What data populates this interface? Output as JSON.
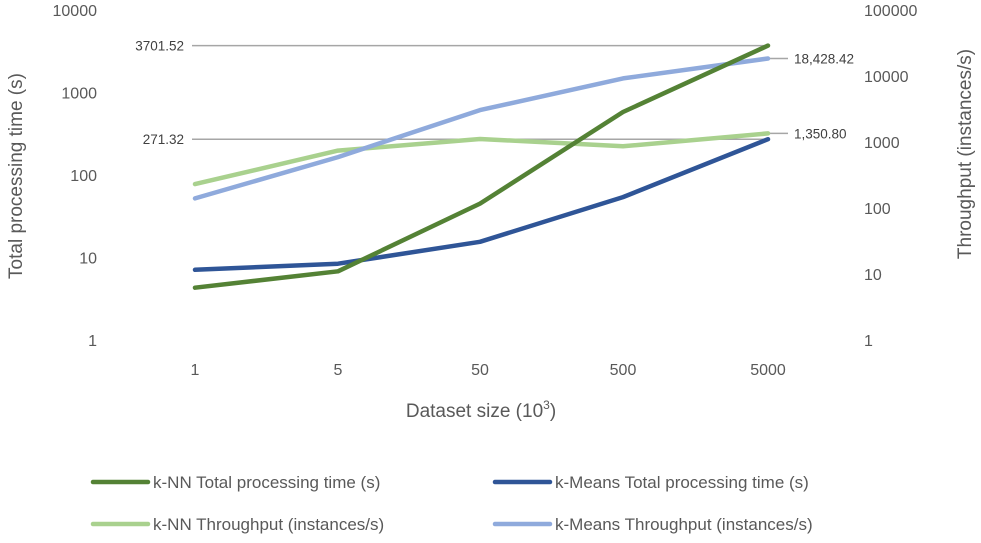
{
  "chart_data": {
    "type": "line",
    "categories": [
      "1",
      "5",
      "50",
      "500",
      "5000"
    ],
    "xlabel": "Dataset size (10",
    "xlabel_sup": "3",
    "xlabel_close": ")",
    "y_left": {
      "label": "Total processing time (s)",
      "scale": "log",
      "ylim": [
        1,
        10000
      ],
      "ticks": [
        "1",
        "10",
        "100",
        "1000",
        "10000"
      ]
    },
    "y_right": {
      "label": "Throughput (instances/s)",
      "scale": "log",
      "ylim": [
        1,
        100000
      ],
      "ticks": [
        "1",
        "10",
        "100",
        "1000",
        "10000",
        "100000"
      ]
    },
    "series": [
      {
        "name": "k-NN Total processing time (s)",
        "axis": "left",
        "color": "#548235",
        "values": [
          4.3,
          6.8,
          45,
          580,
          3701.52
        ]
      },
      {
        "name": "k-Means Total processing time (s)",
        "axis": "left",
        "color": "#2F5597",
        "values": [
          7.1,
          8.4,
          15.5,
          54,
          271.32
        ]
      },
      {
        "name": "k-NN Throughput (instances/s)",
        "axis": "right",
        "color": "#A9D18E",
        "values": [
          230,
          740,
          1110,
          860,
          1350.8
        ]
      },
      {
        "name": "k-Means Throughput (instances/s)",
        "axis": "right",
        "color": "#8FAADC",
        "values": [
          140,
          590,
          3040,
          9200,
          18428.42
        ]
      }
    ],
    "reference_lines": [
      {
        "axis": "left",
        "value": 3701.52,
        "label": "3701.52"
      },
      {
        "axis": "left",
        "value": 271.32,
        "label": "271.32"
      },
      {
        "axis": "right",
        "value": 18428.42,
        "label": "18,428.42"
      },
      {
        "axis": "right",
        "value": 1350.8,
        "label": "1,350.80"
      }
    ],
    "grid": false,
    "legend_position": "bottom"
  }
}
